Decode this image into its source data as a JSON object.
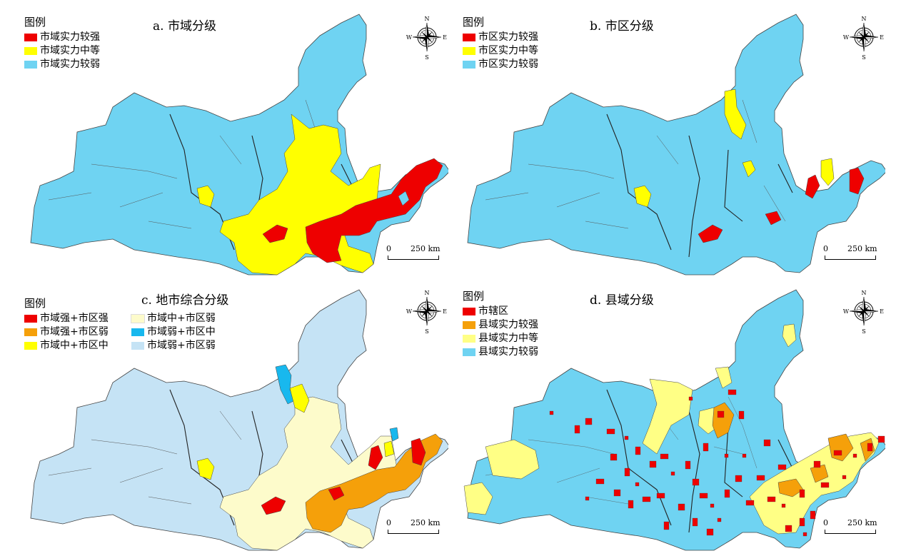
{
  "colors": {
    "blue": "#6fd3f2",
    "yellow": "#ffff00",
    "red": "#ee0000",
    "orange": "#f5a00a",
    "cream": "#fdfbcb",
    "cyan": "#18b8ee",
    "paleblue": "#c5e3f5",
    "lightyellow": "#ffff85",
    "border": "#333333"
  },
  "panels": {
    "a": {
      "title": "a. 市域分级",
      "legend_title": "图例",
      "legend": [
        {
          "label": "市域实力较强",
          "color": "#ee0000"
        },
        {
          "label": "市域实力中等",
          "color": "#ffff00"
        },
        {
          "label": "市域实力较弱",
          "color": "#6fd3f2"
        }
      ],
      "compass": {
        "n": "N",
        "s": "S",
        "e": "E",
        "w": "W"
      },
      "scale": {
        "zero": "0",
        "label": "250 km"
      }
    },
    "b": {
      "title": "b. 市区分级",
      "legend_title": "图例",
      "legend": [
        {
          "label": "市区实力较强",
          "color": "#ee0000"
        },
        {
          "label": "市区实力中等",
          "color": "#ffff00"
        },
        {
          "label": "市区实力较弱",
          "color": "#6fd3f2"
        }
      ],
      "compass": {
        "n": "N",
        "s": "S",
        "e": "E",
        "w": "W"
      },
      "scale": {
        "zero": "0",
        "label": "250 km"
      }
    },
    "c": {
      "title": "c. 地市综合分级",
      "legend_title": "图例",
      "legend": [
        {
          "label": "市域强+市区强",
          "color": "#ee0000"
        },
        {
          "label": "市域中+市区弱",
          "color": "#fdfbcb"
        },
        {
          "label": "市域强+市区弱",
          "color": "#f5a00a"
        },
        {
          "label": "市域弱+市区中",
          "color": "#18b8ee"
        },
        {
          "label": "市域中+市区中",
          "color": "#ffff00"
        },
        {
          "label": "市域弱+市区弱",
          "color": "#c5e3f5"
        }
      ],
      "compass": {
        "n": "N",
        "s": "S",
        "e": "E",
        "w": "W"
      },
      "scale": {
        "zero": "0",
        "label": "250 km"
      }
    },
    "d": {
      "title": "d. 县域分级",
      "legend_title": "图例",
      "legend": [
        {
          "label": "市辖区",
          "color": "#ee0000"
        },
        {
          "label": "县域实力较强",
          "color": "#f5a00a"
        },
        {
          "label": "县域实力中等",
          "color": "#ffff85"
        },
        {
          "label": "县域实力较弱",
          "color": "#6fd3f2"
        }
      ],
      "compass": {
        "n": "N",
        "s": "S",
        "e": "E",
        "w": "W"
      },
      "scale": {
        "zero": "0",
        "label": "250 km"
      }
    }
  }
}
